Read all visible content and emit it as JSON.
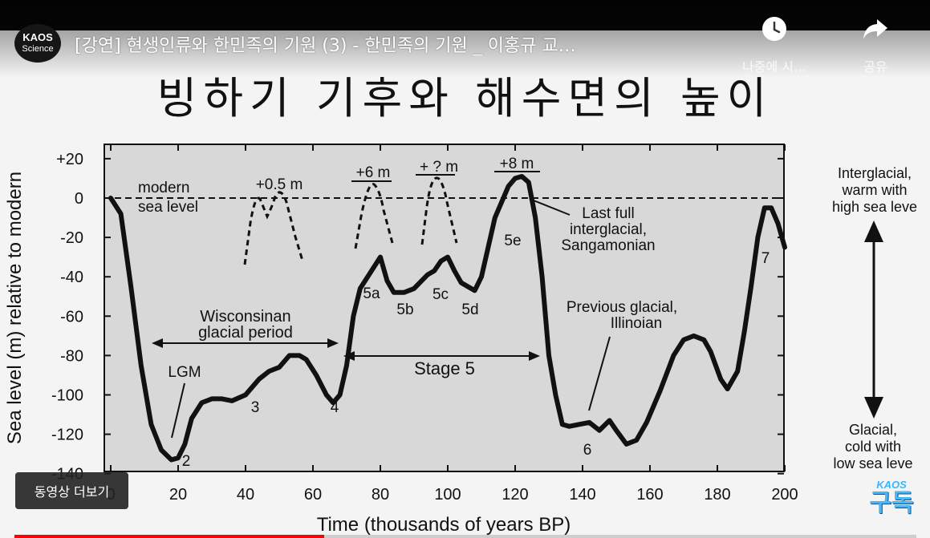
{
  "player": {
    "channel_logo_line1": "KAOS",
    "channel_logo_line2": "Science",
    "video_title": "[강연] 현생인류와 한민족의 기원 (3) - 한민족의 기원 _ 이홍규 교…",
    "watch_later_label": "나중에 시…",
    "share_label": "공유",
    "more_videos_label": "동영상 더보기",
    "subscribe_top": "KAOS",
    "subscribe_label": "구독",
    "progress": 0.343,
    "accent_color": "#ff0000"
  },
  "slide": {
    "title": "빙하기 기후와 해수면의 높이"
  },
  "chart_data": {
    "type": "line",
    "xlabel": "Time (thousands of years BP)",
    "ylabel": "Sea level (m) relative to modern",
    "xlim": [
      0,
      200
    ],
    "ylim": [
      -140,
      20
    ],
    "x_ticks": [
      "0",
      "20",
      "40",
      "60",
      "80",
      "100",
      "120",
      "140",
      "160",
      "180",
      "200"
    ],
    "y_ticks": [
      "+20",
      "0",
      "-20",
      "-40",
      "-60",
      "-80",
      "-100",
      "-120",
      "-140"
    ],
    "modern_level_label": "modern sea level",
    "series": [
      {
        "x": [
          0,
          3,
          6,
          9,
          12,
          15,
          18,
          20,
          22,
          24,
          27,
          30,
          33,
          36,
          40,
          44,
          47,
          50,
          53,
          56,
          58,
          61,
          64,
          66,
          68,
          70,
          72,
          74,
          77,
          80,
          82,
          84,
          87,
          90,
          94,
          96,
          98,
          100,
          102,
          104,
          108,
          110,
          112,
          114,
          116,
          118,
          120,
          122,
          124,
          126,
          128,
          130,
          132,
          134,
          136,
          139,
          142,
          145,
          148,
          150,
          153,
          156,
          159,
          163,
          167,
          170,
          173,
          176,
          178,
          181,
          183,
          186,
          188,
          190,
          192,
          194,
          196,
          198,
          200
        ],
        "y": [
          0,
          -8,
          -45,
          -85,
          -115,
          -128,
          -133,
          -132,
          -125,
          -112,
          -104,
          -102,
          -102,
          -103,
          -100,
          -92,
          -88,
          -86,
          -80,
          -80,
          -82,
          -90,
          -100,
          -104,
          -100,
          -85,
          -60,
          -46,
          -38,
          -30,
          -42,
          -48,
          -48,
          -46,
          -39,
          -37,
          -32,
          -30,
          -37,
          -43,
          -47,
          -40,
          -25,
          -10,
          -2,
          6,
          10,
          11,
          8,
          -10,
          -40,
          -80,
          -100,
          -115,
          -116,
          -115,
          -114,
          -118,
          -113,
          -118,
          -125,
          -123,
          -114,
          -98,
          -80,
          -72,
          -70,
          -72,
          -78,
          -92,
          -97,
          -88,
          -68,
          -45,
          -20,
          -5,
          -5,
          -13,
          -25
        ]
      }
    ],
    "highstand_labels": [
      "+0.5 m",
      "+6 m",
      "+ ? m",
      "+8 m"
    ],
    "stage_labels": [
      "2",
      "3",
      "4",
      "5a",
      "5b",
      "5c",
      "5d",
      "5e",
      "6",
      "7"
    ],
    "annotations": [
      "Wisconsinan glacial period",
      "LGM",
      "Stage 5",
      "Last full interglacial, Sangamonian",
      "Previous glacial, Illinoian"
    ],
    "side_labels": {
      "top": [
        "Interglacial,",
        "warm with",
        "high sea leve"
      ],
      "bottom": [
        "Glacial,",
        "cold with",
        "low sea leve"
      ]
    },
    "grid": false
  }
}
